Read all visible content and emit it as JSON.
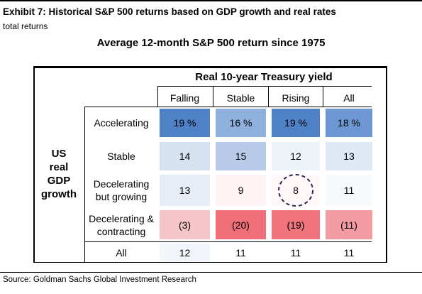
{
  "header": {
    "exhibit_title": "Exhibit 7: Historical S&P 500 returns based on GDP growth and real rates",
    "subtitle": "total returns"
  },
  "source": "Source: Goldman Sachs Global Investment Research",
  "chart_data": {
    "type": "table",
    "title": "Average 12-month S&P 500 return since 1975",
    "column_group_label": "Real 10-year Treasury yield",
    "row_group_label": [
      "US",
      "real",
      "GDP",
      "growth"
    ],
    "columns": [
      "Falling",
      "Stable",
      "Rising",
      "All"
    ],
    "rows": [
      {
        "label": [
          "Accelerating"
        ],
        "values": [
          "19 %",
          "16 %",
          "19 %",
          "18 %"
        ],
        "fills": [
          "#4f81c7",
          "#8fb0dd",
          "#4f81c7",
          "#6d97d2"
        ]
      },
      {
        "label": [
          "Stable"
        ],
        "values": [
          "14",
          "15",
          "12",
          "13"
        ],
        "fills": [
          "#d6e1f1",
          "#b7cbe8",
          "#eef3fa",
          "#dfe8f5"
        ]
      },
      {
        "label": [
          "Decelerating",
          "but growing"
        ],
        "values": [
          "13",
          "9",
          "8",
          "11"
        ],
        "fills": [
          "#e6edf7",
          "#fff3f4",
          "#fff7f8",
          "#f7fafd"
        ]
      },
      {
        "label": [
          "Decelerating &",
          "contracting"
        ],
        "values": [
          "(3)",
          "(20)",
          "(19)",
          "(11)"
        ],
        "fills": [
          "#f5c5c9",
          "#ee6f78",
          "#f0747d",
          "#f39ba2"
        ]
      }
    ],
    "totals_row": {
      "label": "All",
      "values": [
        "12",
        "11",
        "11",
        "11"
      ],
      "fills": [
        "#f2f6fb",
        "#ffffff",
        "#ffffff",
        "#ffffff"
      ]
    },
    "highlight": {
      "row": 2,
      "column": 2,
      "shape": "dashed-circle"
    }
  }
}
